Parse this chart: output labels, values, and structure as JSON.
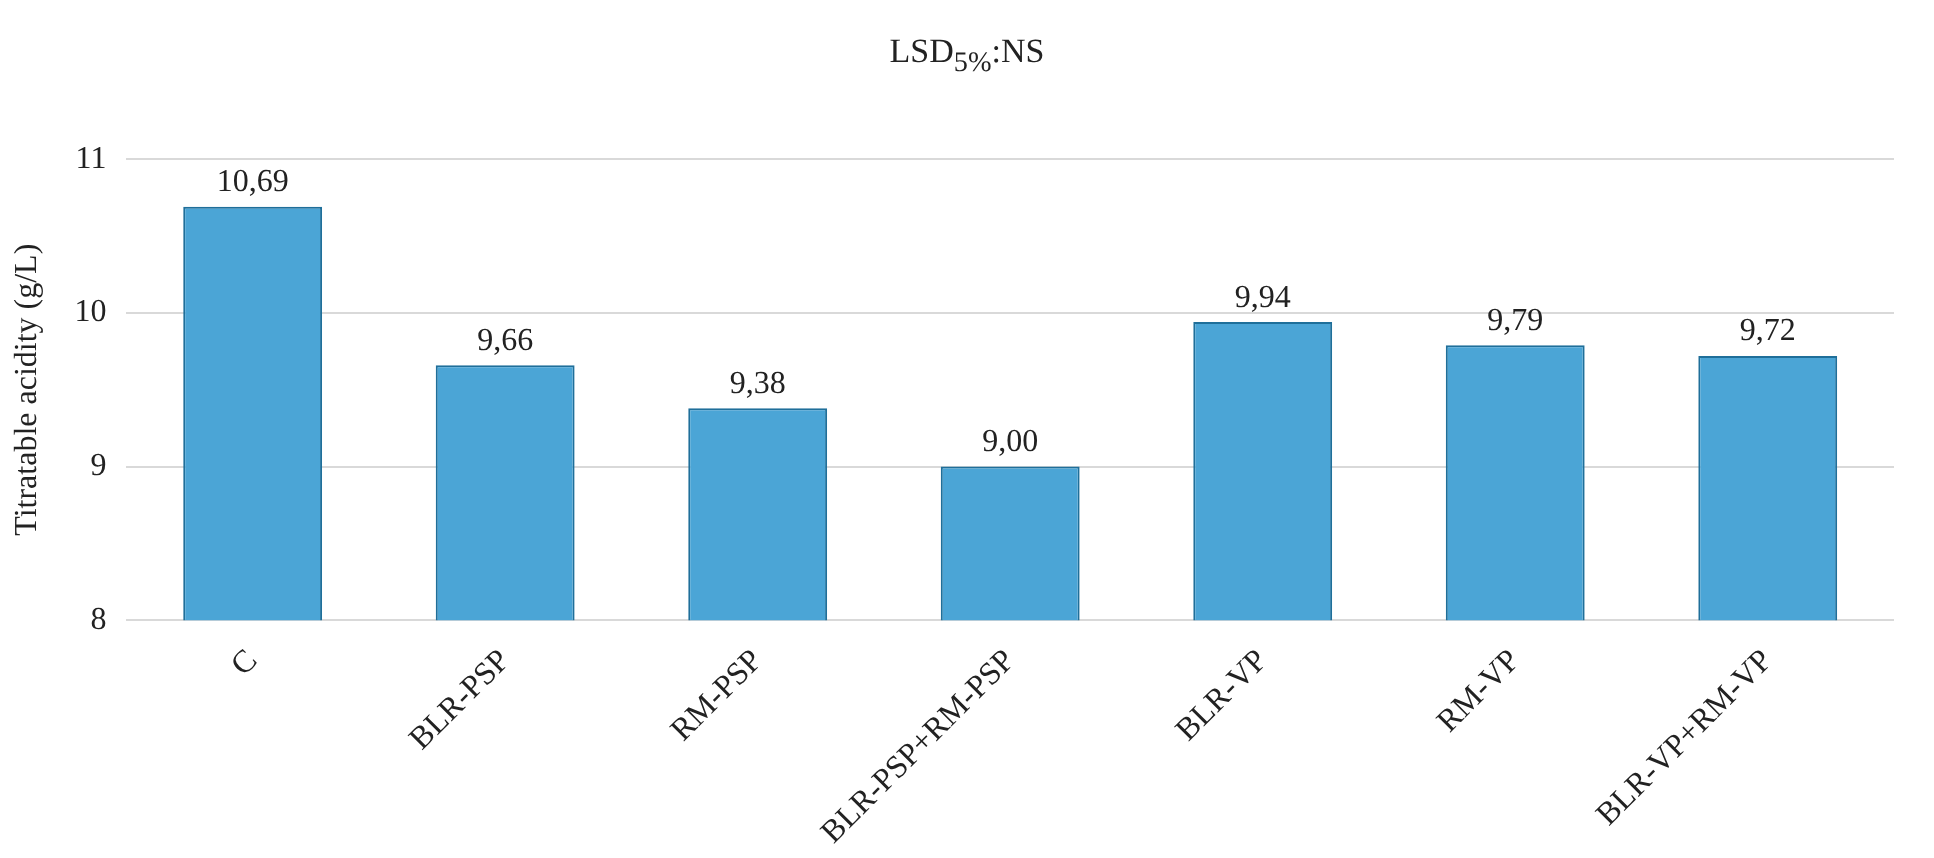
{
  "chart_data": {
    "type": "bar",
    "title": "LSD$_{5%}$:NS",
    "ylabel": "Titratable acidity (g/L)",
    "categories": [
      "C",
      "BLR-PSP",
      "RM-PSP",
      "BLR-PSP+RM-PSP",
      "BLR-VP",
      "RM-VP",
      "BLR-VP+RM-VP"
    ],
    "values": [
      10.69,
      9.66,
      9.38,
      9.0,
      9.94,
      9.79,
      9.72
    ],
    "value_labels": [
      "10,69",
      "9,66",
      "9,38",
      "9,00",
      "9,94",
      "9,79",
      "9,72"
    ],
    "color": "#4ba5d6",
    "ylim": [
      8,
      11
    ],
    "yticks": [
      8,
      9,
      10,
      11
    ],
    "grid": "y",
    "legend": false
  }
}
